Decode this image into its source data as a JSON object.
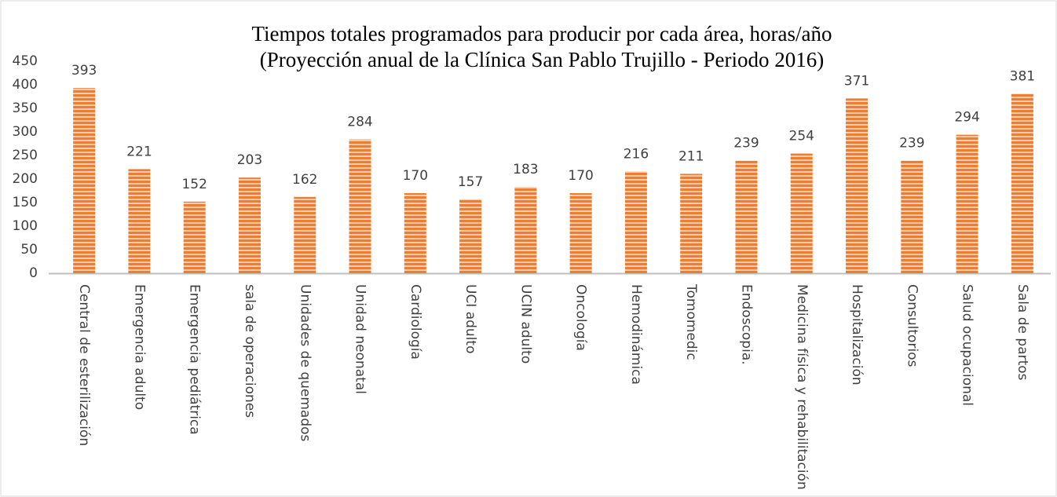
{
  "chart_data": {
    "type": "bar",
    "title": "Tiempos totales programados para producir por cada área, horas/año",
    "subtitle": "(Proyección anual de la Clínica San Pablo Trujillo - Periodo 2016)",
    "categories": [
      "Central de esterilización",
      "Emergencia adulto",
      "Emergencia pediátrica",
      "sala de operaciones",
      "Unidades de quemados",
      "Unidad neonatal",
      "Cardiología",
      "UCI adulto",
      "UCIN adulto",
      "Oncología",
      "Hemodinámica",
      "Tomomedic",
      "Endoscopia.",
      "Medicina física y rehabilitación",
      "Hospitalización",
      "Consultorios",
      "Salud ocupacional",
      "Sala de partos"
    ],
    "values": [
      393,
      221,
      152,
      203,
      162,
      284,
      170,
      157,
      183,
      170,
      216,
      211,
      239,
      254,
      371,
      239,
      294,
      381
    ],
    "color": "#ed7d31",
    "ylim": [
      0,
      450
    ],
    "yticks": [
      0,
      50,
      100,
      150,
      200,
      250,
      300,
      350,
      400,
      450
    ],
    "grid": false
  }
}
